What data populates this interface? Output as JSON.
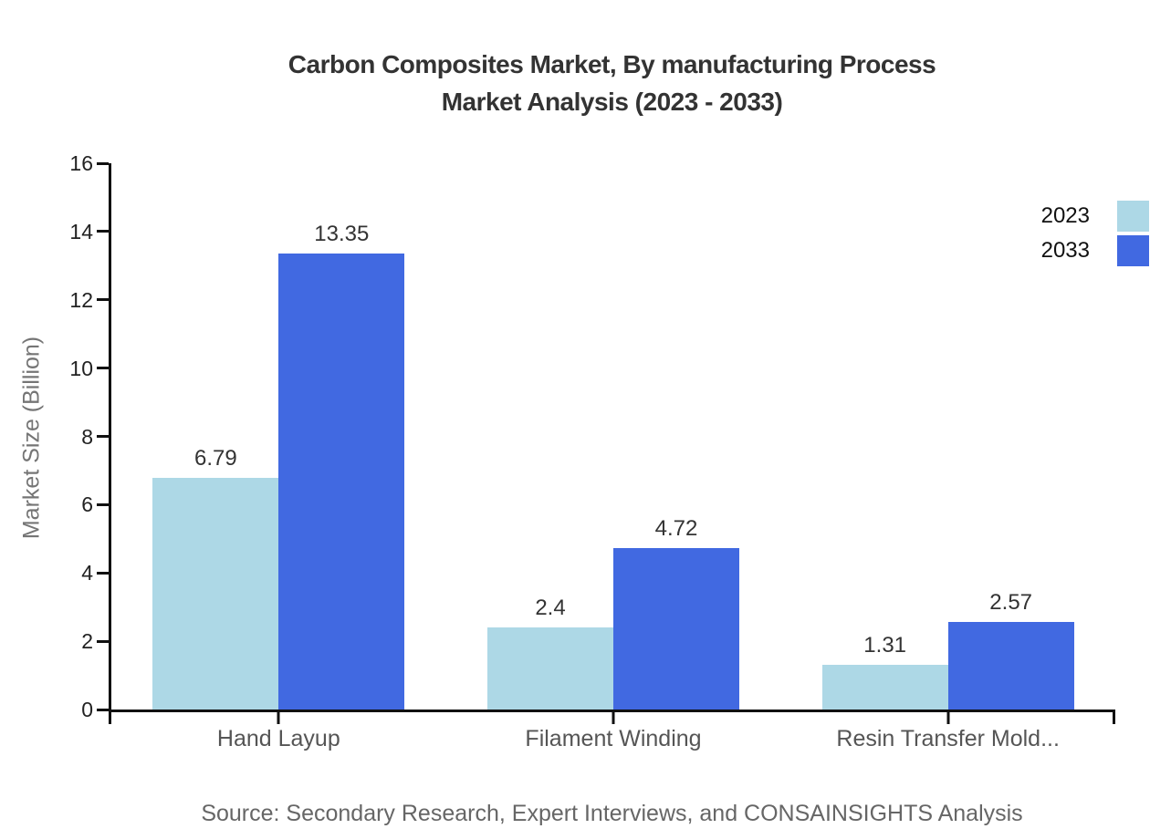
{
  "header": {
    "title_line1": "Carbon Composites Market, By manufacturing Process",
    "title_line2": "Market Analysis (2023 - 2033)"
  },
  "footer": {
    "source": "Source: Secondary Research, Expert Interviews, and CONSAINSIGHTS Analysis"
  },
  "chart_data": {
    "type": "bar",
    "title": "Carbon Composites Market, By manufacturing Process Market Analysis (2023 - 2033)",
    "xlabel": "",
    "ylabel": "Market Size (Billion)",
    "categories": [
      "Hand Layup",
      "Filament Winding",
      "Resin Transfer Mold..."
    ],
    "series": [
      {
        "name": "2023",
        "color": "#ADD8E6",
        "values": [
          6.79,
          2.4,
          1.31
        ]
      },
      {
        "name": "2033",
        "color": "#4169E1",
        "values": [
          13.35,
          4.72,
          2.57
        ]
      }
    ],
    "ylim": [
      0,
      16
    ],
    "yticks": [
      0,
      2,
      4,
      6,
      8,
      10,
      12,
      14,
      16
    ],
    "grid": false,
    "legend_position": "top-right",
    "bar_value_labels": true
  },
  "colors": {
    "axis": "#111111",
    "title_text": "#333333",
    "tick_label": "#222222",
    "category_label": "#555555",
    "value_label": "#333333",
    "axis_title": "#757575",
    "legend_label": "#111111",
    "source_text": "#666666"
  }
}
